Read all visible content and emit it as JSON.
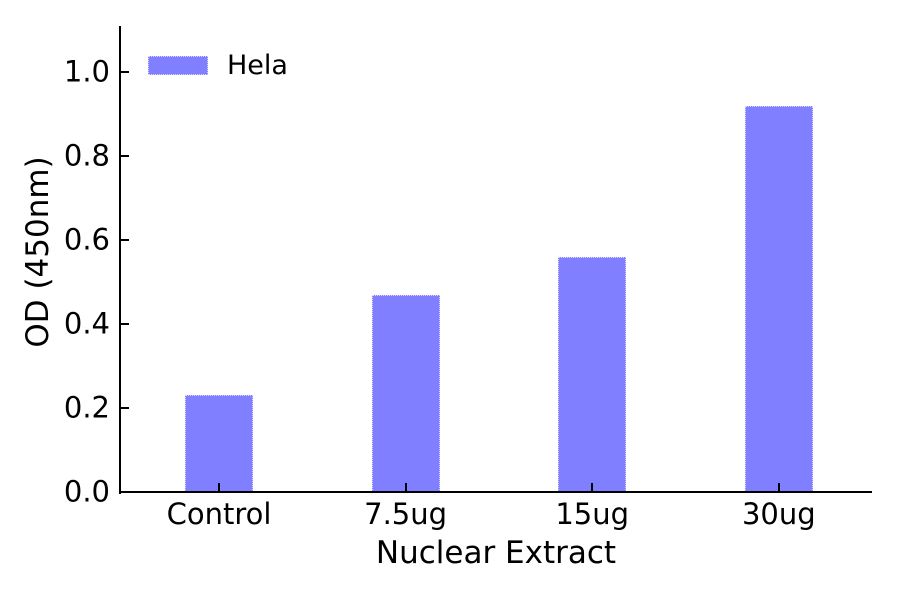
{
  "chart_data": {
    "type": "bar",
    "title": "",
    "categories": [
      "Control",
      "7.5ug",
      "15ug",
      "30ug"
    ],
    "series": [
      {
        "name": "Hela",
        "values": [
          0.23,
          0.47,
          0.56,
          0.92
        ],
        "color": "#7f7fff"
      }
    ],
    "xlabel": "Nuclear Extract",
    "ylabel": "OD (450nm)",
    "ylim": [
      0,
      1.1
    ],
    "yticks": [
      0.0,
      0.2,
      0.4,
      0.6,
      0.8,
      1.0
    ],
    "ytick_labels": [
      "0.0",
      "0.2",
      "0.4",
      "0.6",
      "0.8",
      "1.0"
    ],
    "legend": {
      "position": "upper-left",
      "entries": [
        {
          "label": "Hela",
          "swatch_color": "#7f7fff"
        }
      ]
    },
    "grid": false,
    "colors": {
      "bar_fill": "#7f7fff",
      "bar_edge": "#d9d9ff",
      "axis": "#000000",
      "background": "#ffffff"
    }
  }
}
